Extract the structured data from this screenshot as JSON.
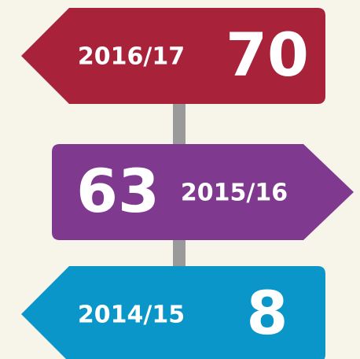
{
  "signs": [
    {
      "period": "2016/17",
      "value": 70,
      "color": "#a8233a",
      "direction": "left"
    },
    {
      "period": "2015/16",
      "value": 63,
      "color": "#7f3a8f",
      "direction": "right"
    },
    {
      "period": "2014/15",
      "value": 8,
      "color": "#0a96c8",
      "direction": "left"
    }
  ]
}
